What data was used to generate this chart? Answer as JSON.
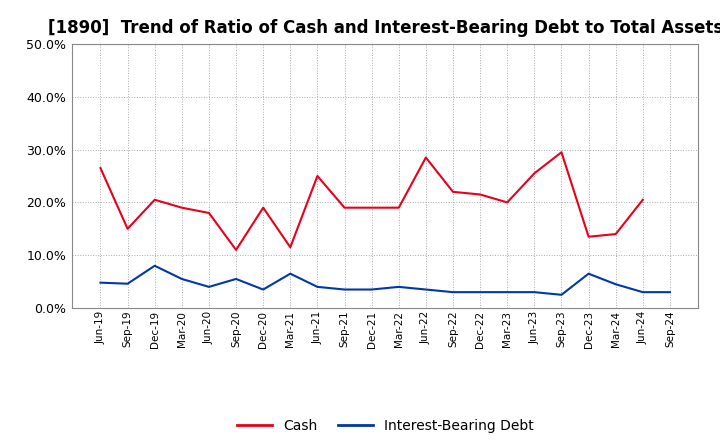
{
  "title": "[1890]  Trend of Ratio of Cash and Interest-Bearing Debt to Total Assets",
  "x_labels": [
    "Jun-19",
    "Sep-19",
    "Dec-19",
    "Mar-20",
    "Jun-20",
    "Sep-20",
    "Dec-20",
    "Mar-21",
    "Jun-21",
    "Sep-21",
    "Dec-21",
    "Mar-22",
    "Jun-22",
    "Sep-22",
    "Dec-22",
    "Mar-23",
    "Jun-23",
    "Sep-23",
    "Dec-23",
    "Mar-24",
    "Jun-24",
    "Sep-24"
  ],
  "cash": [
    26.5,
    15.0,
    20.5,
    19.0,
    18.0,
    11.0,
    19.0,
    11.5,
    25.0,
    19.0,
    19.0,
    19.0,
    28.5,
    22.0,
    21.5,
    20.0,
    25.5,
    29.5,
    13.5,
    14.0,
    20.5,
    null
  ],
  "ibd": [
    4.8,
    4.6,
    8.0,
    5.5,
    4.0,
    5.5,
    3.5,
    6.5,
    4.0,
    3.5,
    3.5,
    4.0,
    3.5,
    3.0,
    3.0,
    3.0,
    3.0,
    2.5,
    6.5,
    4.5,
    3.0,
    3.0
  ],
  "cash_color": "#e8001c",
  "ibd_color": "#0038a8",
  "background_color": "#ffffff",
  "plot_bg_color": "#ffffff",
  "ylim": [
    0,
    50
  ],
  "yticks": [
    0,
    10,
    20,
    30,
    40,
    50
  ],
  "title_fontsize": 12,
  "legend_labels": [
    "Cash",
    "Interest-Bearing Debt"
  ]
}
